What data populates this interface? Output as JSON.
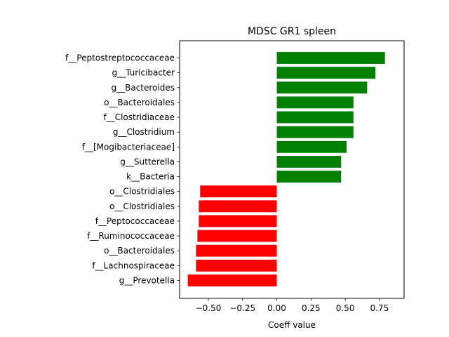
{
  "chart_data": {
    "type": "bar",
    "orientation": "horizontal",
    "title": "MDSC GR1 spleen",
    "xlabel": "Coeff value",
    "ylabel": "",
    "xlim": [
      -0.71,
      0.93
    ],
    "xticks": [
      -0.5,
      -0.25,
      0.0,
      0.25,
      0.5,
      0.75
    ],
    "xtick_labels": [
      "−0.50",
      "−0.25",
      "0.00",
      "0.25",
      "0.50",
      "0.75"
    ],
    "grid": false,
    "legend": "none",
    "colors": {
      "positive": "#008000",
      "negative": "#ff0000"
    },
    "categories": [
      "f__Peptostreptococcaceae",
      "g__Turicibacter",
      "g__Bacteroides",
      "o__Bacteroidales",
      "f__Clostridiaceae",
      "g__Clostridium",
      "f__[Mogibacteriaceae]",
      "g__Sutterella",
      "k__Bacteria",
      "o__Clostridiales",
      "o__Clostridiales",
      "f__Peptococcaceae",
      "f__Ruminococcaceae",
      "o__Bacteroidales",
      "f__Lachnospiraceae",
      "g__Prevotella"
    ],
    "values": [
      0.79,
      0.72,
      0.66,
      0.56,
      0.56,
      0.56,
      0.51,
      0.47,
      0.47,
      -0.56,
      -0.57,
      -0.57,
      -0.58,
      -0.59,
      -0.59,
      -0.65
    ]
  }
}
